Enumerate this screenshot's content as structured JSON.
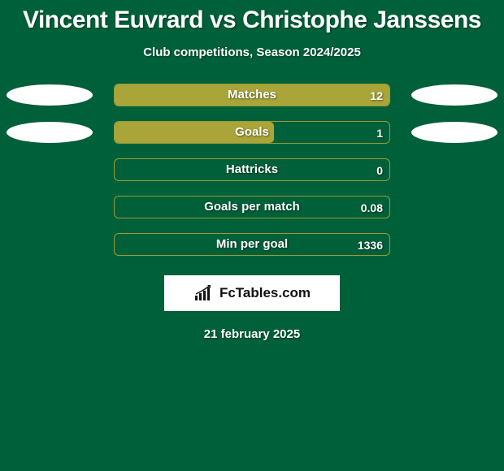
{
  "title": "Vincent Euvrard vs Christophe Janssens",
  "subtitle": "Club competitions, Season 2024/2025",
  "date": "21 february 2025",
  "bar_track_width": 340,
  "bar_track_border_color": "#9a9a3a",
  "bar_fill_color": "#aaa539",
  "background_color": "#006039",
  "ellipse_color": "#ffffff",
  "ellipse_width": 106,
  "ellipse_height": 26,
  "text_color": "#ffffff",
  "stats": [
    {
      "label": "Matches",
      "value": "12",
      "fill_pct": 100,
      "show_left_ellipse": true,
      "show_right_ellipse": true
    },
    {
      "label": "Goals",
      "value": "1",
      "fill_pct": 58,
      "show_left_ellipse": true,
      "show_right_ellipse": true
    },
    {
      "label": "Hattricks",
      "value": "0",
      "fill_pct": 0,
      "show_left_ellipse": false,
      "show_right_ellipse": false
    },
    {
      "label": "Goals per match",
      "value": "0.08",
      "fill_pct": 0,
      "show_left_ellipse": false,
      "show_right_ellipse": false
    },
    {
      "label": "Min per goal",
      "value": "1336",
      "fill_pct": 0,
      "show_left_ellipse": false,
      "show_right_ellipse": false
    }
  ],
  "logo": {
    "brand_text": "FcTables.com",
    "icon_type": "bar-growth",
    "bar_color": "#111111",
    "arrow_color": "#111111"
  }
}
